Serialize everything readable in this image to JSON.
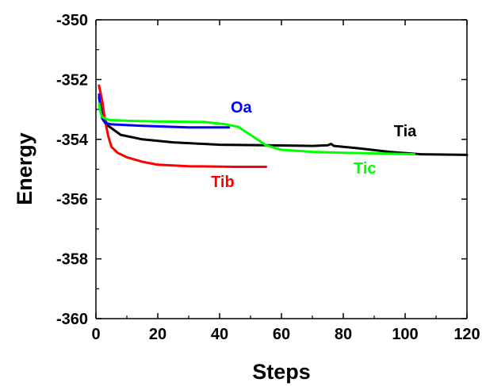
{
  "chart_data": {
    "type": "line",
    "title": "",
    "xlabel": "Steps",
    "ylabel": "Energy",
    "xlim": [
      0,
      120
    ],
    "ylim": [
      -360,
      -350
    ],
    "x_ticks": [
      0,
      20,
      40,
      60,
      80,
      100,
      120
    ],
    "y_ticks": [
      -360,
      -358,
      -356,
      -354,
      -352,
      -350
    ],
    "x_tick_labels": [
      "0",
      "20",
      "40",
      "60",
      "80",
      "100",
      "120"
    ],
    "y_tick_labels": [
      "-360",
      "-358",
      "-356",
      "-354",
      "-352",
      "-350"
    ],
    "grid": false,
    "legend": "none (series labeled inline)",
    "series": [
      {
        "name": "Tia",
        "color": "#000000",
        "points": [
          [
            1,
            -352.6
          ],
          [
            2,
            -353.2
          ],
          [
            4,
            -353.55
          ],
          [
            8,
            -353.85
          ],
          [
            15,
            -354.0
          ],
          [
            25,
            -354.1
          ],
          [
            40,
            -354.18
          ],
          [
            55,
            -354.2
          ],
          [
            70,
            -354.22
          ],
          [
            75,
            -354.2
          ],
          [
            76,
            -354.15
          ],
          [
            77,
            -354.22
          ],
          [
            85,
            -354.3
          ],
          [
            95,
            -354.42
          ],
          [
            105,
            -354.5
          ],
          [
            120,
            -354.52
          ]
        ]
      },
      {
        "name": "Tib",
        "color": "#ff0000",
        "points": [
          [
            1,
            -352.2
          ],
          [
            2,
            -352.7
          ],
          [
            3,
            -353.4
          ],
          [
            4,
            -353.9
          ],
          [
            5,
            -354.25
          ],
          [
            7,
            -354.45
          ],
          [
            10,
            -354.6
          ],
          [
            15,
            -354.75
          ],
          [
            20,
            -354.85
          ],
          [
            30,
            -354.9
          ],
          [
            45,
            -354.92
          ],
          [
            55,
            -354.92
          ]
        ]
      },
      {
        "name": "Oa",
        "color": "#0000ff",
        "points": [
          [
            1,
            -352.5
          ],
          [
            1.5,
            -353.0
          ],
          [
            2,
            -353.3
          ],
          [
            3,
            -353.45
          ],
          [
            5,
            -353.5
          ],
          [
            15,
            -353.55
          ],
          [
            30,
            -353.6
          ],
          [
            43,
            -353.6
          ]
        ]
      },
      {
        "name": "Tic",
        "color": "#00ff00",
        "points": [
          [
            1,
            -352.8
          ],
          [
            1.5,
            -353.1
          ],
          [
            2,
            -353.25
          ],
          [
            4,
            -353.35
          ],
          [
            10,
            -353.38
          ],
          [
            20,
            -353.4
          ],
          [
            35,
            -353.42
          ],
          [
            42,
            -353.5
          ],
          [
            46,
            -353.58
          ],
          [
            50,
            -353.85
          ],
          [
            55,
            -354.2
          ],
          [
            60,
            -354.35
          ],
          [
            70,
            -354.42
          ],
          [
            80,
            -354.45
          ],
          [
            90,
            -354.47
          ],
          [
            103,
            -354.5
          ]
        ]
      }
    ]
  }
}
